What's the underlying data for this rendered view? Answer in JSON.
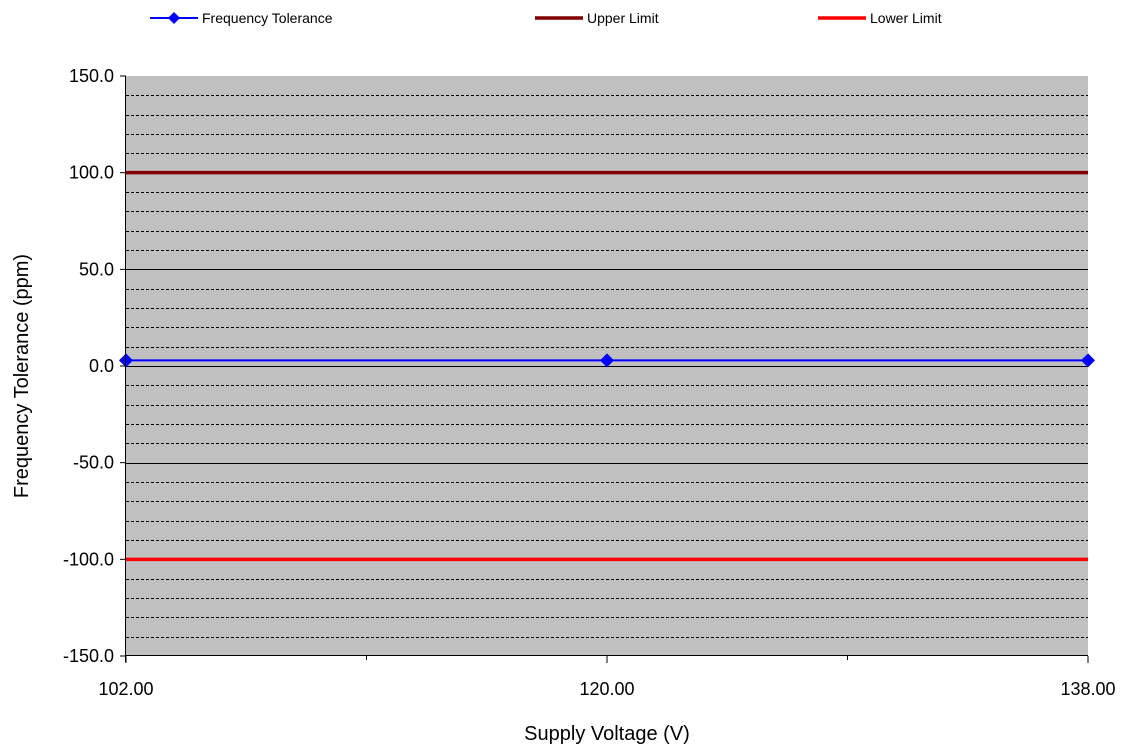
{
  "chart_data": {
    "type": "line",
    "title": "",
    "xlabel": "Supply Voltage (V)",
    "ylabel": "Frequency  Tolerance  (ppm)",
    "x": [
      102.0,
      120.0,
      138.0
    ],
    "xlim": [
      102.0,
      138.0
    ],
    "ylim": [
      -150.0,
      150.0
    ],
    "x_ticks": [
      "102.00",
      "120.00",
      "138.00"
    ],
    "x_minor_ticks": [
      111.0,
      129.0
    ],
    "y_ticks": [
      "150.0",
      "100.0",
      "50.0",
      "0.0",
      "-50.0",
      "-100.0",
      "-150.0"
    ],
    "y_tick_values": [
      150,
      100,
      50,
      0,
      -50,
      -100,
      -150
    ],
    "major_grid_step": 50,
    "minor_grid_step": 10,
    "plot_background": "#c0c0c0",
    "legend_position": "top",
    "series": [
      {
        "name": "Frequency Tolerance",
        "values": [
          2.9,
          2.9,
          2.9
        ],
        "color": "#0000ff",
        "marker": "diamond"
      },
      {
        "name": "Upper Limit",
        "values": [
          100.0,
          100.0,
          100.0
        ],
        "color": "#800000",
        "marker": "none"
      },
      {
        "name": "Lower Limit",
        "values": [
          -100.0,
          -100.0,
          -100.0
        ],
        "color": "#ff0000",
        "marker": "none"
      }
    ]
  }
}
